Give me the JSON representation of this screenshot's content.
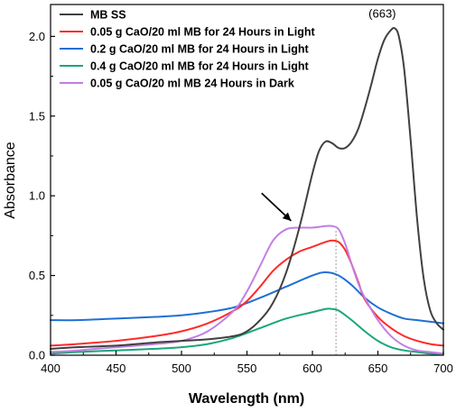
{
  "chart_data": {
    "type": "line",
    "xlabel": "Wavelength (nm)",
    "ylabel": "Absorbance",
    "xlim": [
      400,
      700
    ],
    "ylim": [
      0,
      2.2
    ],
    "x_ticks": [
      "400",
      "450",
      "500",
      "550",
      "600",
      "650",
      "700"
    ],
    "y_ticks": [
      "0.0",
      "0.5",
      "1.0",
      "1.5",
      "2.0"
    ],
    "grid": false,
    "legend_position": "top-left",
    "peak_annotation": {
      "text": "(663)",
      "x": 663,
      "y": 2.05
    },
    "arrow_annotation": {
      "from": [
        575,
        0.96
      ],
      "to": [
        592,
        0.82
      ]
    },
    "reference_line_x": 618,
    "series": [
      {
        "name": "MB SS",
        "color": "#404040",
        "x": [
          400,
          420,
          450,
          480,
          500,
          520,
          540,
          550,
          560,
          570,
          580,
          590,
          600,
          605,
          610,
          615,
          620,
          625,
          630,
          635,
          640,
          645,
          650,
          655,
          660,
          663,
          666,
          670,
          675,
          680,
          685,
          690,
          695,
          700
        ],
        "y": [
          0.04,
          0.05,
          0.06,
          0.08,
          0.09,
          0.1,
          0.12,
          0.15,
          0.22,
          0.33,
          0.52,
          0.8,
          1.14,
          1.28,
          1.34,
          1.33,
          1.3,
          1.3,
          1.34,
          1.42,
          1.55,
          1.7,
          1.86,
          1.98,
          2.04,
          2.05,
          2.0,
          1.8,
          1.35,
          0.85,
          0.48,
          0.28,
          0.2,
          0.16
        ]
      },
      {
        "name": "0.05 g CaO/20 ml MB for 24 Hours in Light",
        "color": "#ff2a2a",
        "x": [
          400,
          420,
          450,
          480,
          500,
          520,
          540,
          550,
          560,
          570,
          580,
          590,
          600,
          610,
          615,
          620,
          625,
          630,
          635,
          640,
          650,
          660,
          670,
          680,
          690,
          700
        ],
        "y": [
          0.06,
          0.07,
          0.09,
          0.12,
          0.15,
          0.2,
          0.28,
          0.34,
          0.43,
          0.53,
          0.6,
          0.65,
          0.68,
          0.71,
          0.72,
          0.71,
          0.66,
          0.57,
          0.46,
          0.35,
          0.24,
          0.17,
          0.12,
          0.09,
          0.07,
          0.06
        ]
      },
      {
        "name": "0.2 g CaO/20 ml MB for 24 Hours in Light",
        "color": "#1f6fd6",
        "x": [
          400,
          420,
          450,
          480,
          500,
          520,
          540,
          560,
          580,
          600,
          610,
          620,
          630,
          640,
          650,
          660,
          670,
          680,
          690,
          700
        ],
        "y": [
          0.22,
          0.22,
          0.23,
          0.24,
          0.25,
          0.27,
          0.3,
          0.36,
          0.43,
          0.5,
          0.52,
          0.5,
          0.44,
          0.36,
          0.3,
          0.26,
          0.23,
          0.22,
          0.21,
          0.2
        ]
      },
      {
        "name": "0.4 g CaO/20 ml MB for 24 Hours in Light",
        "color": "#1aa67a",
        "x": [
          400,
          420,
          450,
          480,
          500,
          520,
          540,
          560,
          580,
          600,
          610,
          615,
          620,
          630,
          640,
          650,
          660,
          670,
          680,
          690,
          700
        ],
        "y": [
          0.01,
          0.02,
          0.03,
          0.04,
          0.05,
          0.07,
          0.11,
          0.17,
          0.23,
          0.27,
          0.29,
          0.29,
          0.28,
          0.22,
          0.15,
          0.09,
          0.05,
          0.03,
          0.02,
          0.01,
          0.01
        ]
      },
      {
        "name": "0.05 g CaO/20 ml MB 24 Hours in Dark",
        "color": "#c27ee6",
        "x": [
          400,
          420,
          450,
          480,
          500,
          520,
          540,
          550,
          560,
          570,
          580,
          590,
          600,
          610,
          615,
          620,
          625,
          630,
          635,
          640,
          650,
          660,
          670,
          680,
          690,
          700
        ],
        "y": [
          0.02,
          0.03,
          0.05,
          0.07,
          0.09,
          0.15,
          0.28,
          0.4,
          0.56,
          0.72,
          0.79,
          0.8,
          0.8,
          0.81,
          0.81,
          0.79,
          0.7,
          0.57,
          0.45,
          0.36,
          0.22,
          0.12,
          0.06,
          0.03,
          0.02,
          0.01
        ]
      }
    ]
  }
}
